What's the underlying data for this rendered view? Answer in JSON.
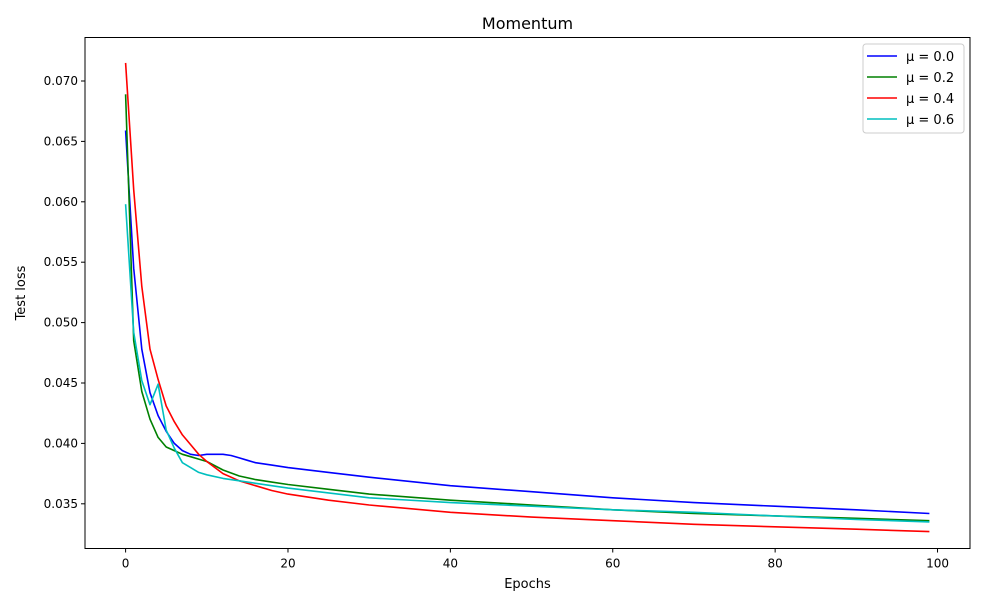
{
  "chart_data": {
    "type": "line",
    "title": "Momentum",
    "xlabel": "Epochs",
    "ylabel": "Test loss",
    "xlim": [
      -5,
      104
    ],
    "ylim": [
      0.0313,
      0.0736
    ],
    "x_ticks": [
      0,
      20,
      40,
      60,
      80,
      100
    ],
    "y_ticks": [
      0.035,
      0.04,
      0.045,
      0.05,
      0.055,
      0.06,
      0.065,
      0.07
    ],
    "x_tick_labels": [
      "0",
      "20",
      "40",
      "60",
      "80",
      "100"
    ],
    "y_tick_labels": [
      "0.035",
      "0.040",
      "0.045",
      "0.050",
      "0.055",
      "0.060",
      "0.065",
      "0.070"
    ],
    "grid": false,
    "legend_position": "top-right",
    "series": [
      {
        "name": "μ = 0.0",
        "color": "#0000ff",
        "points": [
          [
            0,
            0.0659
          ],
          [
            1,
            0.0545
          ],
          [
            2,
            0.0478
          ],
          [
            3,
            0.0442
          ],
          [
            4,
            0.0423
          ],
          [
            5,
            0.041
          ],
          [
            6,
            0.04
          ],
          [
            7,
            0.0394
          ],
          [
            8,
            0.0391
          ],
          [
            9,
            0.039
          ],
          [
            10,
            0.0391
          ],
          [
            11,
            0.0391
          ],
          [
            12,
            0.0391
          ],
          [
            13,
            0.039
          ],
          [
            14,
            0.0388
          ],
          [
            15,
            0.0386
          ],
          [
            16,
            0.0384
          ],
          [
            18,
            0.0382
          ],
          [
            20,
            0.038
          ],
          [
            25,
            0.0376
          ],
          [
            30,
            0.0372
          ],
          [
            40,
            0.0365
          ],
          [
            50,
            0.036
          ],
          [
            60,
            0.0355
          ],
          [
            70,
            0.0351
          ],
          [
            80,
            0.0348
          ],
          [
            90,
            0.0345
          ],
          [
            99,
            0.0342
          ]
        ]
      },
      {
        "name": "μ = 0.2",
        "color": "#008000",
        "points": [
          [
            0,
            0.0689
          ],
          [
            1,
            0.0485
          ],
          [
            2,
            0.0443
          ],
          [
            3,
            0.042
          ],
          [
            4,
            0.0405
          ],
          [
            5,
            0.0397
          ],
          [
            6,
            0.0394
          ],
          [
            7,
            0.0391
          ],
          [
            8,
            0.0389
          ],
          [
            9,
            0.0387
          ],
          [
            10,
            0.0385
          ],
          [
            12,
            0.0378
          ],
          [
            14,
            0.0373
          ],
          [
            16,
            0.037
          ],
          [
            18,
            0.0368
          ],
          [
            20,
            0.0366
          ],
          [
            25,
            0.0362
          ],
          [
            30,
            0.0358
          ],
          [
            40,
            0.0353
          ],
          [
            50,
            0.0349
          ],
          [
            60,
            0.0345
          ],
          [
            70,
            0.0342
          ],
          [
            80,
            0.034
          ],
          [
            90,
            0.0338
          ],
          [
            99,
            0.0336
          ]
        ]
      },
      {
        "name": "μ = 0.4",
        "color": "#ff0000",
        "points": [
          [
            0,
            0.0715
          ],
          [
            1,
            0.061
          ],
          [
            2,
            0.053
          ],
          [
            3,
            0.0478
          ],
          [
            4,
            0.0453
          ],
          [
            5,
            0.0431
          ],
          [
            6,
            0.0418
          ],
          [
            7,
            0.0407
          ],
          [
            8,
            0.0399
          ],
          [
            9,
            0.0391
          ],
          [
            10,
            0.0385
          ],
          [
            12,
            0.0375
          ],
          [
            14,
            0.0369
          ],
          [
            16,
            0.0365
          ],
          [
            18,
            0.0361
          ],
          [
            20,
            0.0358
          ],
          [
            25,
            0.0353
          ],
          [
            30,
            0.0349
          ],
          [
            40,
            0.0343
          ],
          [
            50,
            0.0339
          ],
          [
            60,
            0.0336
          ],
          [
            70,
            0.0333
          ],
          [
            80,
            0.0331
          ],
          [
            90,
            0.0329
          ],
          [
            99,
            0.0327
          ]
        ]
      },
      {
        "name": "μ = 0.6",
        "color": "#00bfbf",
        "points": [
          [
            0,
            0.0598
          ],
          [
            1,
            0.0492
          ],
          [
            2,
            0.0452
          ],
          [
            3,
            0.0432
          ],
          [
            4,
            0.0449
          ],
          [
            5,
            0.0411
          ],
          [
            6,
            0.0396
          ],
          [
            7,
            0.0384
          ],
          [
            8,
            0.038
          ],
          [
            9,
            0.0376
          ],
          [
            10,
            0.0374
          ],
          [
            12,
            0.0371
          ],
          [
            14,
            0.0369
          ],
          [
            16,
            0.0367
          ],
          [
            18,
            0.0365
          ],
          [
            20,
            0.0363
          ],
          [
            25,
            0.0359
          ],
          [
            30,
            0.0355
          ],
          [
            40,
            0.0351
          ],
          [
            50,
            0.0348
          ],
          [
            60,
            0.0345
          ],
          [
            70,
            0.0343
          ],
          [
            80,
            0.034
          ],
          [
            90,
            0.0337
          ],
          [
            99,
            0.0335
          ]
        ]
      }
    ]
  }
}
